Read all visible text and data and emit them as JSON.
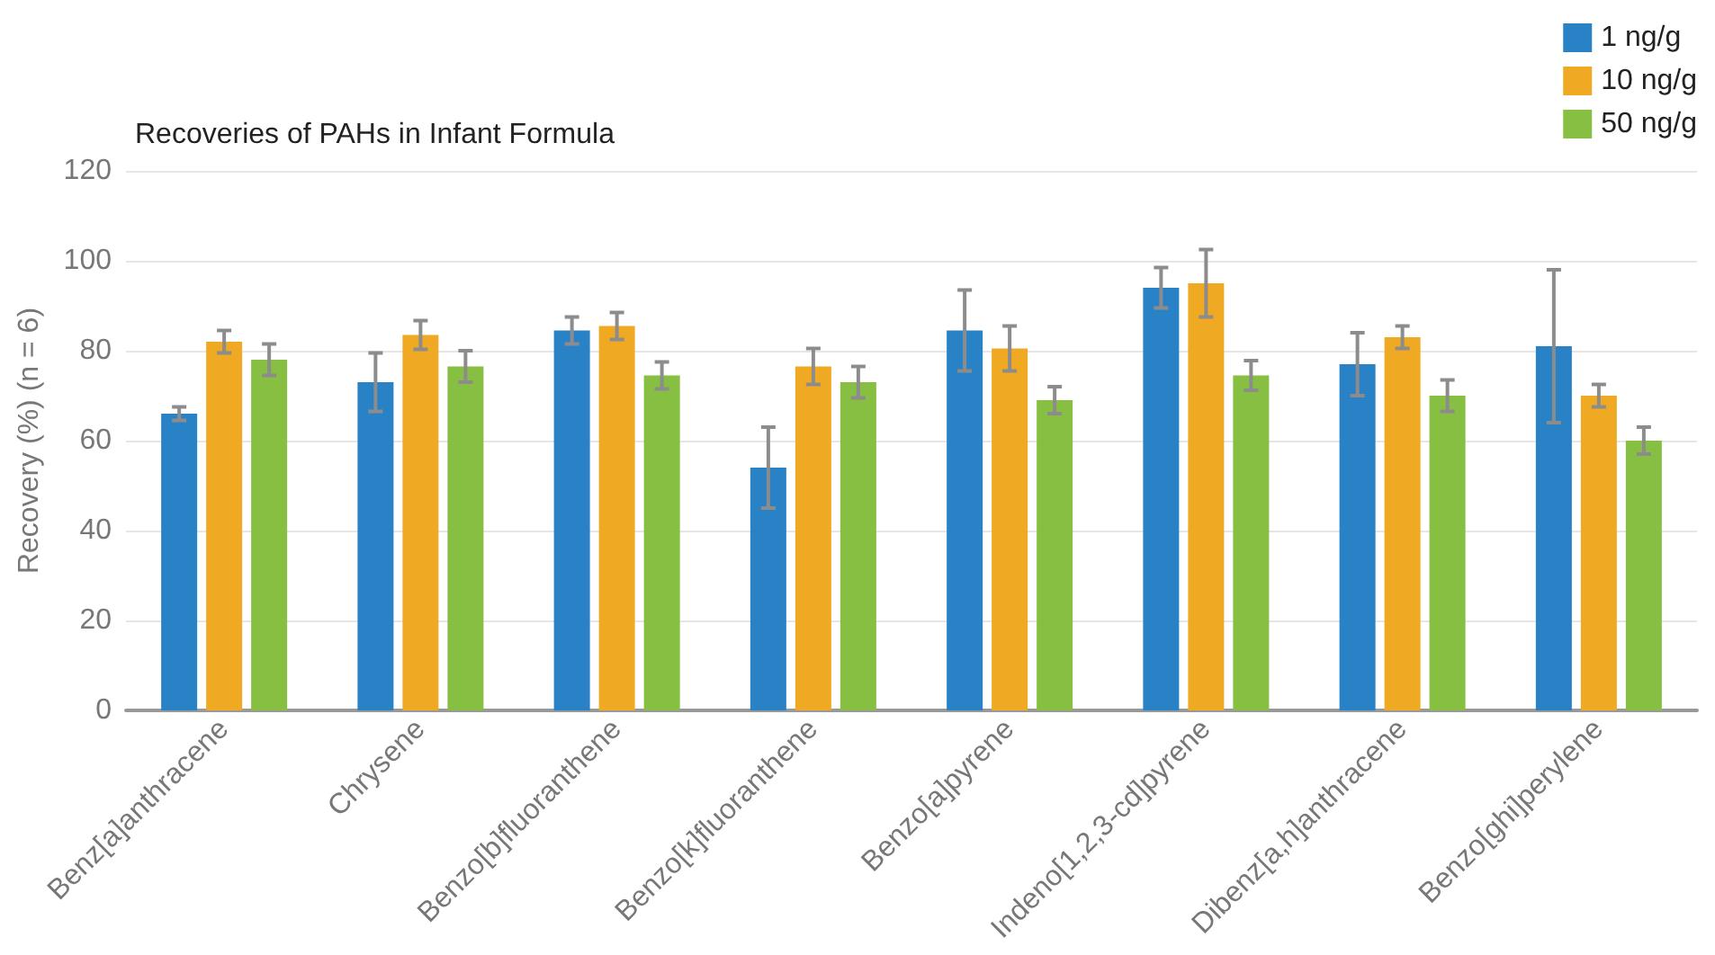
{
  "chart_data": {
    "type": "bar",
    "title": "Recoveries of PAHs in Infant Formula",
    "ylabel": "Recovery (%) (n = 6)",
    "categories": [
      "Benz[a]anthracene",
      "Chrysene",
      "Benzo[b]fluoranthene",
      "Benzo[k]fluoranthene",
      "Benzo[a]pyrene",
      "Indeno[1,2,3-cd]pyrene",
      "Dibenz[a,h]anthracene",
      "Benzo[ghi]perylene"
    ],
    "series": [
      {
        "name": "1 ng/g",
        "color": "#2a82c6",
        "values": [
          66,
          73,
          84.5,
          54,
          84.5,
          94,
          77,
          81
        ],
        "errors": [
          1.5,
          6.5,
          3,
          9,
          9,
          4.5,
          7,
          17
        ]
      },
      {
        "name": "10 ng/g",
        "color": "#f0a922",
        "values": [
          82,
          83.5,
          85.5,
          76.5,
          80.5,
          95,
          83,
          70
        ],
        "errors": [
          2.5,
          3.2,
          3,
          4,
          5,
          7.5,
          2.5,
          2.5
        ]
      },
      {
        "name": "50 ng/g",
        "color": "#86bf42",
        "values": [
          78,
          76.5,
          74.5,
          73,
          69,
          74.5,
          70,
          60
        ],
        "errors": [
          3.5,
          3.5,
          3,
          3.5,
          3,
          3.3,
          3.5,
          3
        ]
      }
    ],
    "ylim": [
      0,
      120
    ],
    "yticks": [
      0,
      20,
      40,
      60,
      80,
      100,
      120
    ],
    "grid": "y",
    "legend": "top right"
  }
}
